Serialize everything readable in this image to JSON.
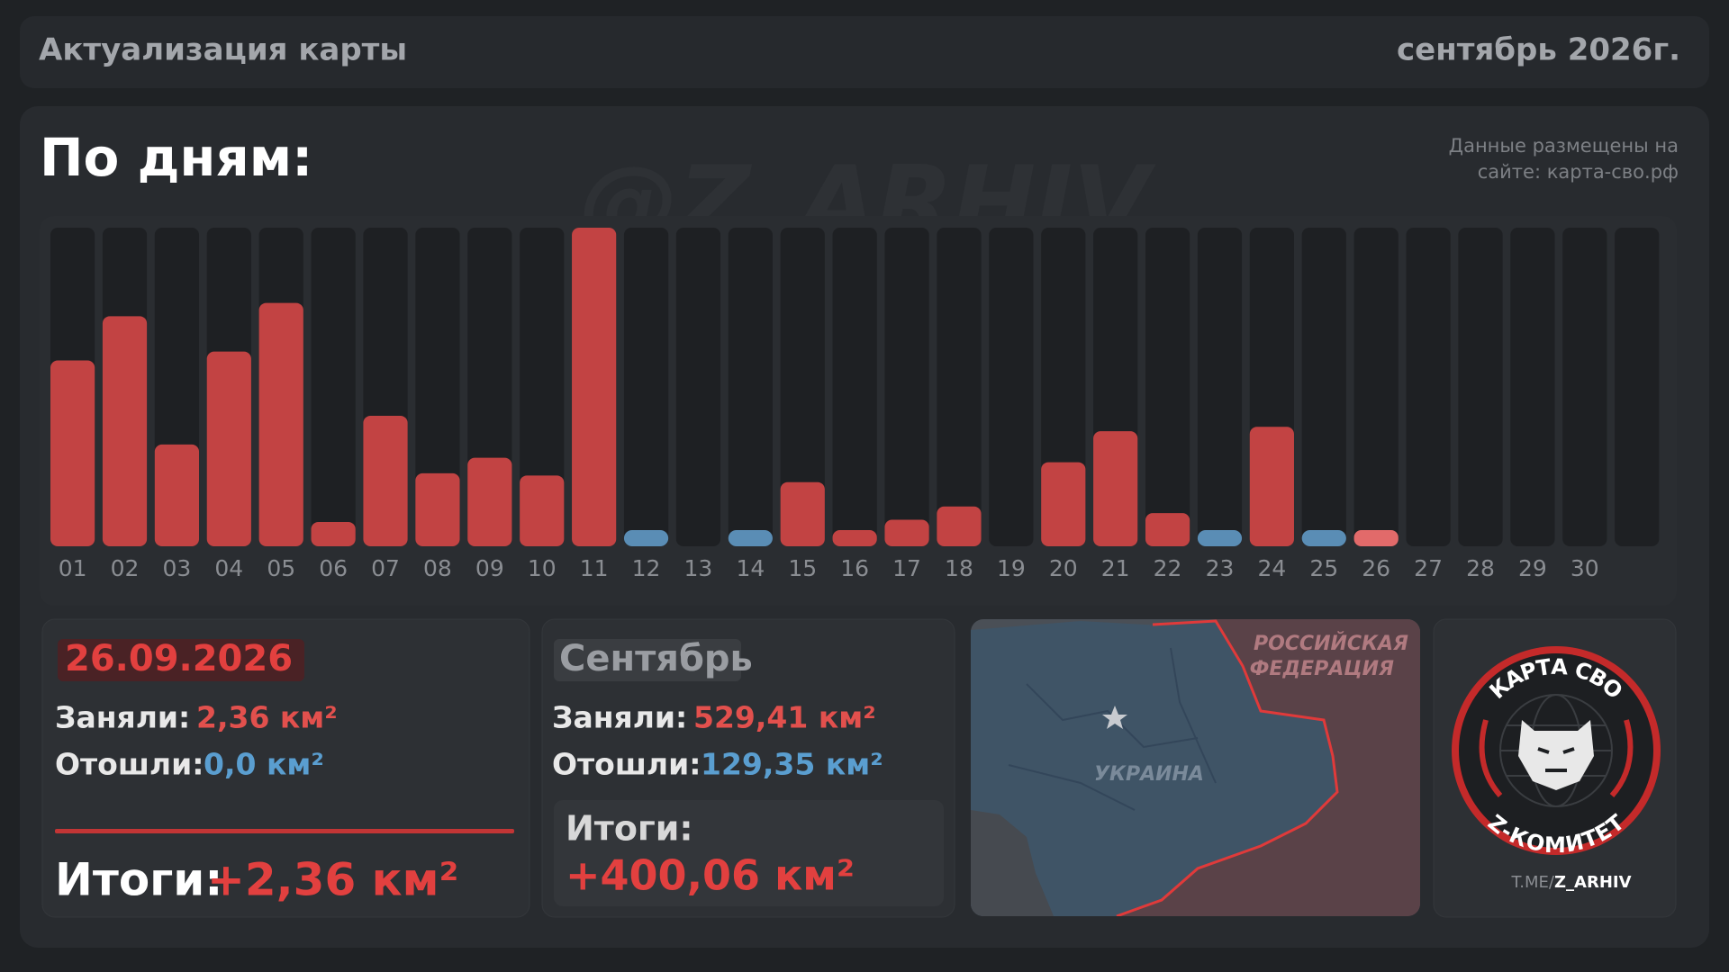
{
  "header": {
    "title": "Актуализация карты",
    "period": "сентябрь 2026г."
  },
  "watermark": "@Z_ARHIV",
  "chart_data": {
    "type": "bar",
    "title": "По дням:",
    "subtitle": [
      "Данные размещены на",
      "сайте: карта-сво.рф"
    ],
    "categories": [
      "01",
      "02",
      "03",
      "04",
      "05",
      "06",
      "07",
      "08",
      "09",
      "10",
      "11",
      "12",
      "13",
      "14",
      "15",
      "16",
      "17",
      "18",
      "19",
      "20",
      "21",
      "22",
      "23",
      "24",
      "25",
      "26",
      "27",
      "28",
      "29",
      "30",
      null
    ],
    "values": [
      42,
      52,
      23,
      44,
      55,
      5.5,
      29.5,
      16.5,
      20,
      16,
      72,
      -3,
      0,
      -3,
      14.5,
      3.5,
      6,
      9,
      0,
      19,
      26,
      7.5,
      -3,
      27,
      -3,
      2.36,
      null,
      null,
      null,
      null,
      null
    ],
    "colors": [
      "#c24343",
      "#c24343",
      "#c24343",
      "#c24343",
      "#c24343",
      "#c24343",
      "#c24343",
      "#c24343",
      "#c24343",
      "#c24343",
      "#c24343",
      "#5a8db5",
      "#c24343",
      "#5a8db5",
      "#c24343",
      "#c24343",
      "#c24343",
      "#c24343",
      "#c24343",
      "#c24343",
      "#c24343",
      "#c24343",
      "#5a8db5",
      "#c24343",
      "#5a8db5",
      "#e26a6a",
      "#c24343",
      "#c24343",
      "#c24343",
      "#c24343",
      "#c24343"
    ],
    "ylim": [
      0,
      72
    ]
  },
  "day": {
    "date": "26.09.2026",
    "gained_label": "Заняли:",
    "gained": "2,36 км²",
    "lost_label": "Отошли:",
    "lost": "0,0 км²",
    "total_label": "Итоги:",
    "total": "+2,36 км²"
  },
  "month": {
    "name": "Сентябрь",
    "gained_label": "Заняли:",
    "gained": "529,41 км²",
    "lost_label": "Отошли:",
    "lost": "129,35 км²",
    "total_label": "Итоги:",
    "total": "+400,06 км²"
  },
  "map": {
    "labels": [
      "РОССИЙСКАЯ",
      "ФЕДЕРАЦИЯ",
      "УКРАИНА"
    ]
  },
  "logo": {
    "top": "КАРТА СВО",
    "bottom": "Z-КОМИТЕТ",
    "link_prefix": "T.ME/",
    "link_handle": "Z_ARHIV"
  }
}
